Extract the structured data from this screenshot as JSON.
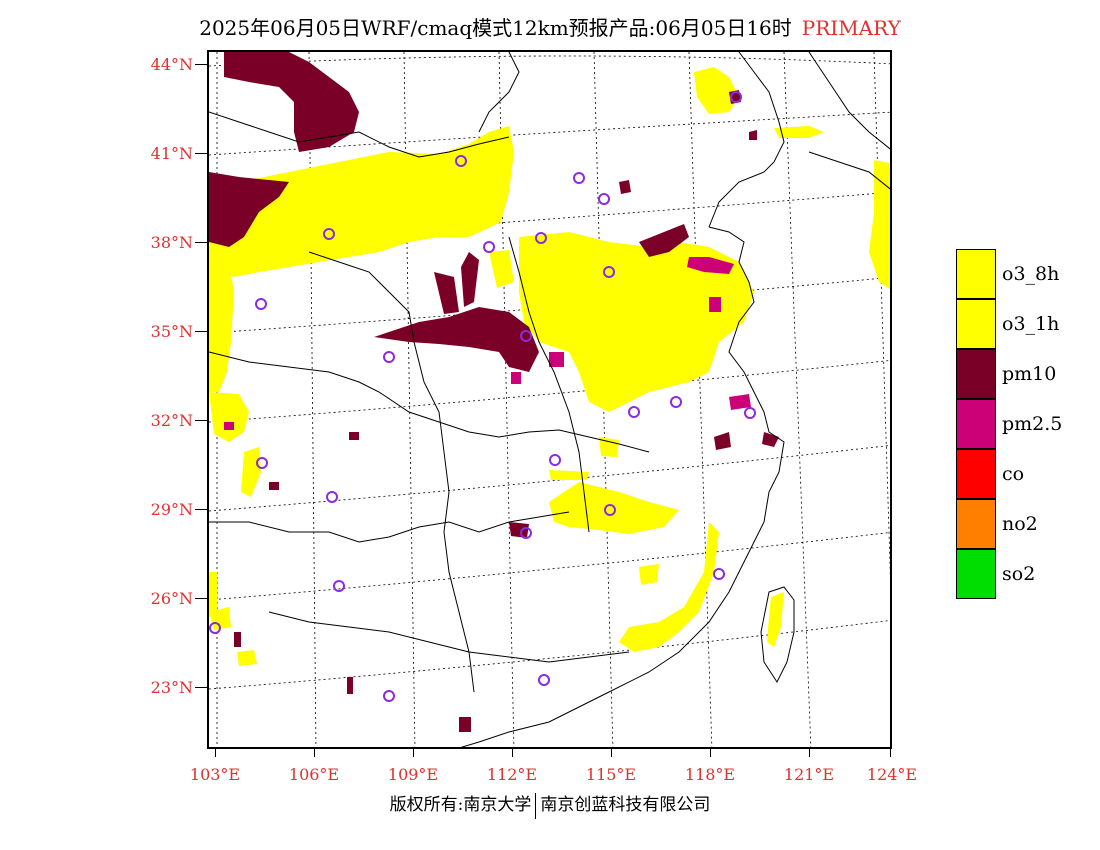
{
  "header": {
    "title": "2025年06月05日WRF/cmaq模式12km预报产品:06月05日16时",
    "tag": "PRIMARY",
    "tag_color": "#e03030"
  },
  "map": {
    "lat_labels": [
      "44°N",
      "41°N",
      "38°N",
      "35°N",
      "32°N",
      "29°N",
      "26°N",
      "23°N"
    ],
    "lon_labels": [
      "103°E",
      "106°E",
      "109°E",
      "112°E",
      "115°E",
      "118°E",
      "121°E",
      "124°E"
    ],
    "label_color": "#e03030"
  },
  "legend": {
    "items": [
      {
        "label": "o3_8h",
        "color": "#ffff00"
      },
      {
        "label": "o3_1h",
        "color": "#ffff00"
      },
      {
        "label": "pm10",
        "color": "#7a0028"
      },
      {
        "label": "pm2.5",
        "color": "#cc0077"
      },
      {
        "label": "co",
        "color": "#ff0000"
      },
      {
        "label": "no2",
        "color": "#ff7f00"
      },
      {
        "label": "so2",
        "color": "#00dd00"
      }
    ]
  },
  "footer": {
    "left": "版权所有:南京大学",
    "right": "南京创蓝科技有限公司"
  },
  "colors": {
    "o3": "#ffff00",
    "pm10": "#7a0028",
    "pm25": "#cc0077",
    "station_ring": "#8a2be2"
  }
}
